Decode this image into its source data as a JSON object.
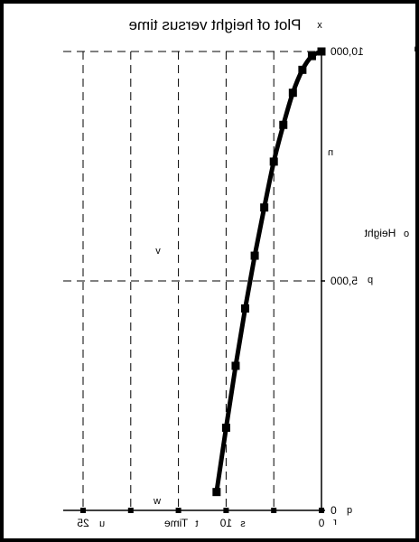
{
  "chart_data": {
    "type": "line",
    "title": "Plot of height versus time",
    "xlabel": "Time",
    "ylabel": "Height",
    "x_axis_reversed": true,
    "xlim": [
      0,
      25
    ],
    "ylim": [
      0,
      10000
    ],
    "x_ticks": [
      {
        "value": 0,
        "label": "0"
      },
      {
        "value": 5,
        "label": ""
      },
      {
        "value": 10,
        "label": "10"
      },
      {
        "value": 15,
        "label": ""
      },
      {
        "value": 20,
        "label": ""
      },
      {
        "value": 25,
        "label": "25"
      }
    ],
    "y_ticks": [
      {
        "value": 0,
        "label": "0"
      },
      {
        "value": 5000,
        "label": "5,000"
      },
      {
        "value": 10000,
        "label": "10,000"
      }
    ],
    "grid": {
      "vertical_at": [
        5,
        10,
        15,
        20,
        25
      ],
      "horizontal_at": [
        5000,
        10000
      ],
      "style": "dashed"
    },
    "series": [
      {
        "color": "#000000",
        "marker": "square",
        "points": [
          [
            0,
            10000
          ],
          [
            1,
            9900
          ],
          [
            2,
            9600
          ],
          [
            3,
            9100
          ],
          [
            4,
            8400
          ],
          [
            5,
            7600
          ],
          [
            6,
            6600
          ],
          [
            7,
            5550
          ],
          [
            8,
            4400
          ],
          [
            9,
            3150
          ],
          [
            10,
            1800
          ],
          [
            11,
            400
          ]
        ]
      }
    ],
    "annotations": [
      {
        "text": "x",
        "near": "title"
      },
      {
        "text": "m",
        "near": "y-tick 10,000"
      },
      {
        "text": "n",
        "near": "right side"
      },
      {
        "text": "o",
        "near": "y-label"
      },
      {
        "text": "p",
        "near": "y-tick 5,000"
      },
      {
        "text": "q",
        "near": "y-tick 0"
      },
      {
        "text": "r",
        "near": "x-tick 0"
      },
      {
        "text": "s",
        "near": "x-tick 10"
      },
      {
        "text": "t",
        "near": "x-label"
      },
      {
        "text": "u",
        "near": "x-tick 25"
      },
      {
        "text": "v",
        "near": "curve"
      },
      {
        "text": "w",
        "near": "x-axis"
      }
    ]
  }
}
